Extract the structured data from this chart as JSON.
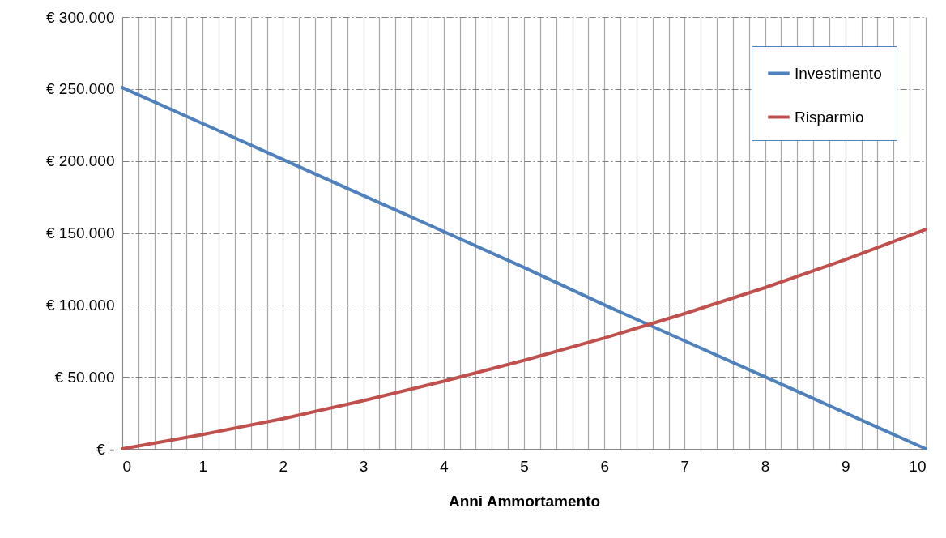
{
  "chart_data": {
    "type": "line",
    "xlabel": "Anni Ammortamento",
    "x": [
      0,
      1,
      2,
      3,
      4,
      5,
      6,
      7,
      8,
      9,
      10
    ],
    "series": [
      {
        "name": "Investimento",
        "color": "#4f81bd",
        "values": [
          251000,
          226000,
          201000,
          176000,
          151000,
          126000,
          100000,
          75000,
          50000,
          25000,
          0
        ]
      },
      {
        "name": "Risparmio",
        "color": "#c0504d",
        "values": [
          0,
          10000,
          21000,
          33500,
          47000,
          61500,
          77000,
          94000,
          112000,
          131500,
          152500
        ]
      }
    ],
    "xlim": [
      0,
      10
    ],
    "xticks": [
      0,
      {
        "value": 0.2,
        "label": null
      },
      {
        "value": 0.4,
        "label": null
      },
      {
        "value": 0.6,
        "label": null
      },
      {
        "value": 0.8,
        "label": null
      },
      1,
      {
        "value": 1.2,
        "label": null
      },
      {
        "value": 1.4,
        "label": null
      },
      {
        "value": 1.6,
        "label": null
      },
      {
        "value": 1.8,
        "label": null
      },
      2,
      {
        "value": 2.2,
        "label": null
      },
      {
        "value": 2.4,
        "label": null
      },
      {
        "value": 2.6,
        "label": null
      },
      {
        "value": 2.8,
        "label": null
      },
      3,
      {
        "value": 3.2,
        "label": null
      },
      {
        "value": 3.4,
        "label": null
      },
      {
        "value": 3.6,
        "label": null
      },
      {
        "value": 3.8,
        "label": null
      },
      4,
      {
        "value": 4.2,
        "label": null
      },
      {
        "value": 4.4,
        "label": null
      },
      {
        "value": 4.6,
        "label": null
      },
      {
        "value": 4.8,
        "label": null
      },
      5,
      {
        "value": 5.2,
        "label": null
      },
      {
        "value": 5.4,
        "label": null
      },
      {
        "value": 5.6,
        "label": null
      },
      {
        "value": 5.8,
        "label": null
      },
      6,
      {
        "value": 6.2,
        "label": null
      },
      {
        "value": 6.4,
        "label": null
      },
      {
        "value": 6.6,
        "label": null
      },
      {
        "value": 6.8,
        "label": null
      },
      7,
      {
        "value": 7.2,
        "label": null
      },
      {
        "value": 7.4,
        "label": null
      },
      {
        "value": 7.6,
        "label": null
      },
      {
        "value": 7.8,
        "label": null
      },
      8,
      {
        "value": 8.2,
        "label": null
      },
      {
        "value": 8.4,
        "label": null
      },
      {
        "value": 8.6,
        "label": null
      },
      {
        "value": 8.8,
        "label": null
      },
      9,
      {
        "value": 9.2,
        "label": null
      },
      {
        "value": 9.4,
        "label": null
      },
      {
        "value": 9.6,
        "label": null
      },
      {
        "value": 9.8,
        "label": null
      },
      10
    ],
    "ylim": [
      0,
      300000
    ],
    "yticks": [
      {
        "value": 0,
        "label": "€ -"
      },
      {
        "value": 50000,
        "label": "€ 50.000"
      },
      {
        "value": 100000,
        "label": "€ 100.000"
      },
      {
        "value": 150000,
        "label": "€ 150.000"
      },
      {
        "value": 200000,
        "label": "€ 200.000"
      },
      {
        "value": 250000,
        "label": "€ 250.000"
      },
      {
        "value": 300000,
        "label": "€ 300.000"
      }
    ],
    "grid": true,
    "legend": "top right",
    "marker": "none",
    "line_style": "solid"
  }
}
